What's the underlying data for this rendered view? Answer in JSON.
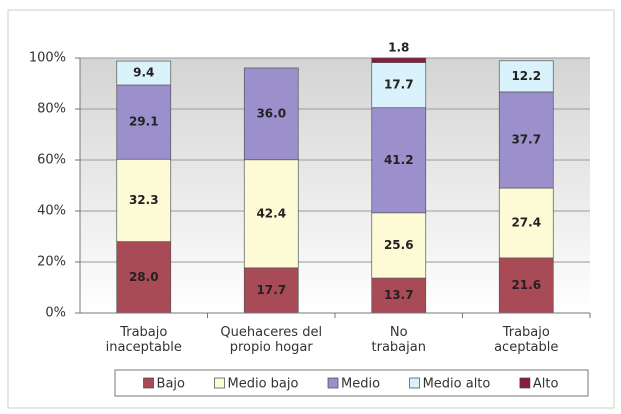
{
  "chart_data": {
    "type": "stacked_bar",
    "categories": [
      "Trabajo\ninaceptable",
      "Quehaceres del\npropio hogar",
      "No\ntrabajan",
      "Trabajo\naceptable"
    ],
    "series": [
      {
        "name": "Bajo",
        "color": "#a84b57",
        "values": [
          28.0,
          17.7,
          13.7,
          21.6
        ],
        "value_labels": [
          "28.0",
          "17.7",
          "13.7",
          "21.6"
        ]
      },
      {
        "name": "Medio bajo",
        "color": "#fdfbd6",
        "values": [
          32.3,
          42.4,
          25.6,
          27.4
        ],
        "value_labels": [
          "32.3",
          "42.4",
          "25.6",
          "27.4"
        ]
      },
      {
        "name": "Medio",
        "color": "#9c90cc",
        "values": [
          29.1,
          36.0,
          41.2,
          37.7
        ],
        "value_labels": [
          "29.1",
          "36.0",
          "41.2",
          "37.7"
        ]
      },
      {
        "name": "Medio alto",
        "color": "#d9f2fb",
        "values": [
          9.4,
          null,
          17.7,
          12.2
        ],
        "value_labels": [
          "9.4",
          null,
          "17.7",
          "12.2"
        ]
      },
      {
        "name": "Alto",
        "color": "#8a1c3c",
        "values": [
          null,
          null,
          1.8,
          null
        ],
        "value_labels": [
          null,
          null,
          "1.8",
          null
        ]
      }
    ],
    "ylim": [
      0,
      100
    ],
    "yticks": [
      {
        "value": 0,
        "label": "0%"
      },
      {
        "value": 20,
        "label": "20%"
      },
      {
        "value": 40,
        "label": "40%"
      },
      {
        "value": 60,
        "label": "60%"
      },
      {
        "value": 80,
        "label": "80%"
      },
      {
        "value": 100,
        "label": "100%"
      }
    ],
    "legend": "bottom"
  }
}
